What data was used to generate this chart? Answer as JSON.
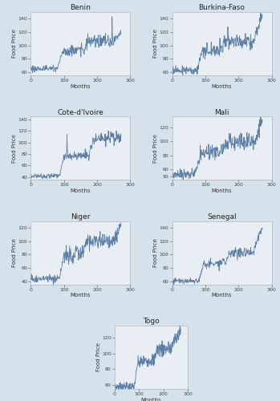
{
  "countries": [
    "Benin",
    "Burkina-Faso",
    "Cote-d'Ivoire",
    "Mali",
    "Niger",
    "Senegal",
    "Togo"
  ],
  "n_months": 273,
  "xlabel": "Months",
  "ylabel": "Food Price",
  "line_color": "#5b7fa6",
  "bg_color": "#e8eef4",
  "fig_bg": "#d5e2ec",
  "xticks": [
    0,
    100,
    200,
    300
  ],
  "xlim": [
    0,
    300
  ],
  "title_fontsize": 6.5,
  "label_fontsize": 5.0,
  "tick_fontsize": 4.5,
  "line_width": 0.6,
  "params": {
    "Benin": {
      "ylim": [
        55,
        150
      ],
      "yticks": [
        60,
        80,
        100,
        120,
        140
      ]
    },
    "Burkina-Faso": {
      "ylim": [
        55,
        150
      ],
      "yticks": [
        60,
        80,
        100,
        120,
        140
      ]
    },
    "Cote-d'Ivoire": {
      "ylim": [
        35,
        145
      ],
      "yticks": [
        40,
        60,
        80,
        100,
        120,
        140
      ]
    },
    "Mali": {
      "ylim": [
        45,
        135
      ],
      "yticks": [
        50,
        60,
        80,
        100,
        120
      ]
    },
    "Niger": {
      "ylim": [
        35,
        130
      ],
      "yticks": [
        40,
        60,
        80,
        100,
        120
      ]
    },
    "Senegal": {
      "ylim": [
        55,
        150
      ],
      "yticks": [
        60,
        80,
        100,
        120,
        140
      ]
    },
    "Togo": {
      "ylim": [
        55,
        135
      ],
      "yticks": [
        60,
        80,
        100,
        120
      ]
    }
  }
}
